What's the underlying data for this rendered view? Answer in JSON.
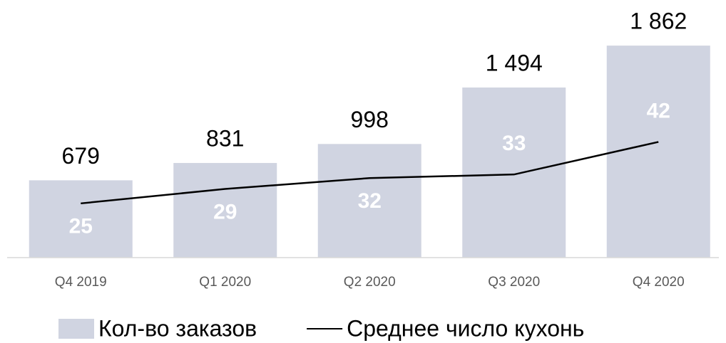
{
  "chart_data": {
    "type": "bar",
    "categories": [
      "Q4 2019",
      "Q1 2020",
      "Q2 2020",
      "Q3 2020",
      "Q4 2020"
    ],
    "ylim": [
      0,
      2000
    ],
    "y2lim": [
      10,
      73
    ],
    "series": [
      {
        "name": "Кол-во заказов",
        "type": "bar",
        "color": "#d0d4e1",
        "values": [
          679,
          831,
          998,
          1494,
          1862
        ],
        "value_labels": [
          "679",
          "831",
          "998",
          "1 494",
          "1 862"
        ]
      },
      {
        "name": "Среднее число кухонь",
        "type": "line",
        "axis": "y2",
        "color": "#000000",
        "values": [
          25,
          29,
          32,
          33,
          42
        ]
      }
    ]
  }
}
